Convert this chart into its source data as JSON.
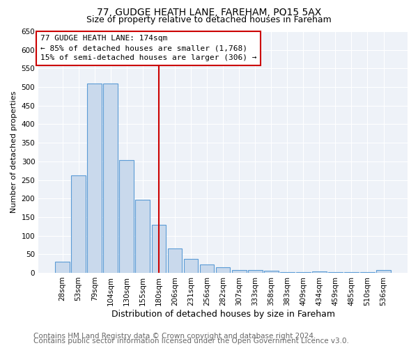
{
  "title1": "77, GUDGE HEATH LANE, FAREHAM, PO15 5AX",
  "title2": "Size of property relative to detached houses in Fareham",
  "xlabel": "Distribution of detached houses by size in Fareham",
  "ylabel": "Number of detached properties",
  "categories": [
    "28sqm",
    "53sqm",
    "79sqm",
    "104sqm",
    "130sqm",
    "155sqm",
    "180sqm",
    "206sqm",
    "231sqm",
    "256sqm",
    "282sqm",
    "307sqm",
    "333sqm",
    "358sqm",
    "383sqm",
    "409sqm",
    "434sqm",
    "459sqm",
    "485sqm",
    "510sqm",
    "536sqm"
  ],
  "values": [
    30,
    263,
    510,
    510,
    303,
    197,
    130,
    65,
    38,
    22,
    15,
    8,
    7,
    5,
    2,
    1,
    4,
    1,
    1,
    1,
    7
  ],
  "bar_color": "#c9d9ec",
  "bar_edge_color": "#5b9bd5",
  "highlight_index": 6,
  "vline_color": "#cc0000",
  "annotation_box_text": "77 GUDGE HEATH LANE: 174sqm\n← 85% of detached houses are smaller (1,768)\n15% of semi-detached houses are larger (306) →",
  "annotation_box_color": "#cc0000",
  "ylim": [
    0,
    650
  ],
  "yticks": [
    0,
    50,
    100,
    150,
    200,
    250,
    300,
    350,
    400,
    450,
    500,
    550,
    600,
    650
  ],
  "footer1": "Contains HM Land Registry data © Crown copyright and database right 2024.",
  "footer2": "Contains public sector information licensed under the Open Government Licence v3.0.",
  "bg_color": "#ffffff",
  "plot_bg_color": "#eef2f8",
  "grid_color": "#ffffff",
  "title1_fontsize": 10,
  "title2_fontsize": 9,
  "xlabel_fontsize": 9,
  "ylabel_fontsize": 8,
  "tick_fontsize": 7.5,
  "ann_fontsize": 8,
  "footer_fontsize": 7.5
}
